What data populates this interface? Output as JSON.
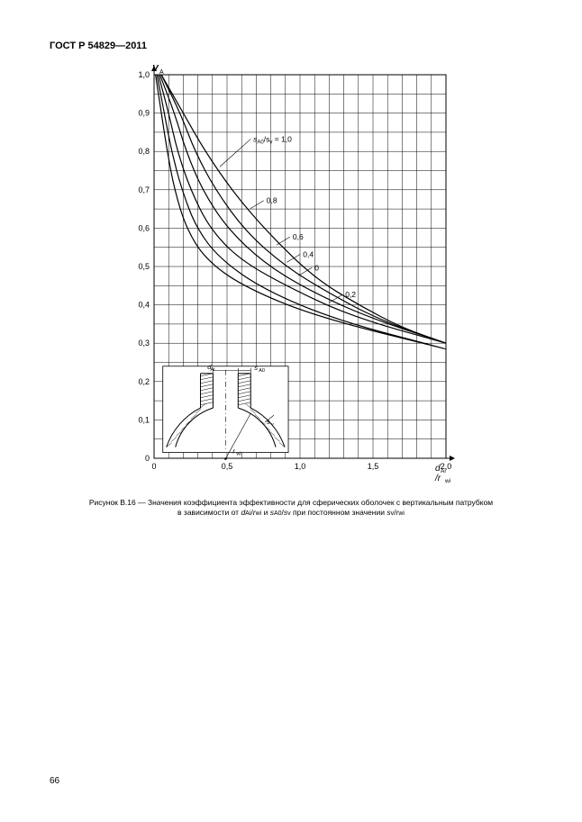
{
  "header": "ГОСТ Р 54829—2011",
  "page_number": "66",
  "caption_line1_prefix": "Рисунок В.16 — Значения коэффициента эффективности для сферических оболочек с вертикальным патрубком",
  "caption_line2_prefix": "в зависимости от ",
  "caption_var_d": "d",
  "caption_sub_Ai": "Ai",
  "caption_slash": "/",
  "caption_var_r": "r",
  "caption_sub_wi": "wi",
  "caption_and": " и ",
  "caption_var_s": "s",
  "caption_sub_A0": "A0",
  "caption_sub_v": "v",
  "caption_mid": " при постоянном значении ",
  "chart": {
    "type": "line",
    "background_color": "#ffffff",
    "grid_color": "#000000",
    "grid_stroke": 0.5,
    "axis_stroke": 1.0,
    "curve_stroke": 1.2,
    "font_size_tick": 9,
    "font_size_axis_label": 10,
    "y_label": "V",
    "y_label_sub": "A",
    "x_label_top": "d",
    "x_label_top_sub": "Ai",
    "x_label_bot": "r",
    "x_label_bot_sub": "wi",
    "xlim": [
      0,
      2.0
    ],
    "ylim": [
      0,
      1.0
    ],
    "x_ticks_major": [
      0,
      0.5,
      1.0,
      1.5,
      2.0
    ],
    "x_tick_labels": [
      "0",
      "0,5",
      "1,0",
      "1,5",
      "2,0"
    ],
    "y_ticks": [
      0,
      0.1,
      0.2,
      0.3,
      0.4,
      0.5,
      0.6,
      0.7,
      0.8,
      0.9,
      1.0
    ],
    "y_tick_labels": [
      "0",
      "0,1",
      "0,2",
      "0,3",
      "0,4",
      "0,5",
      "0,6",
      "0,7",
      "0,8",
      "0,9",
      "1,0"
    ],
    "x_minor_step": 0.1,
    "y_minor_step": 0.05,
    "series_label_prefix": "s",
    "series_label_prefix_sub": "A0",
    "series_label_mid": "/s",
    "series_label_mid_sub": "v",
    "series_label_eq": " = 1,0",
    "series": [
      {
        "label": "1,0",
        "points": [
          [
            0.05,
            1.0
          ],
          [
            0.2,
            0.9
          ],
          [
            0.35,
            0.8
          ],
          [
            0.55,
            0.69
          ],
          [
            0.8,
            0.58
          ],
          [
            1.1,
            0.47
          ],
          [
            1.4,
            0.4
          ],
          [
            1.7,
            0.34
          ],
          [
            2.0,
            0.3
          ]
        ]
      },
      {
        "label": "0,8",
        "points": [
          [
            0.05,
            1.0
          ],
          [
            0.18,
            0.9
          ],
          [
            0.28,
            0.8
          ],
          [
            0.42,
            0.7
          ],
          [
            0.63,
            0.59
          ],
          [
            0.9,
            0.5
          ],
          [
            1.2,
            0.43
          ],
          [
            1.55,
            0.36
          ],
          [
            2.0,
            0.3
          ]
        ]
      },
      {
        "label": "0,6",
        "points": [
          [
            0.04,
            1.0
          ],
          [
            0.14,
            0.9
          ],
          [
            0.22,
            0.8
          ],
          [
            0.33,
            0.7
          ],
          [
            0.5,
            0.6
          ],
          [
            0.75,
            0.51
          ],
          [
            1.05,
            0.44
          ],
          [
            1.45,
            0.37
          ],
          [
            2.0,
            0.3
          ]
        ]
      },
      {
        "label": "0,4",
        "points": [
          [
            0.03,
            1.0
          ],
          [
            0.1,
            0.9
          ],
          [
            0.16,
            0.8
          ],
          [
            0.25,
            0.7
          ],
          [
            0.38,
            0.6
          ],
          [
            0.58,
            0.52
          ],
          [
            0.9,
            0.45
          ],
          [
            1.35,
            0.37
          ],
          [
            2.0,
            0.3
          ]
        ]
      },
      {
        "label": "0,2",
        "points": [
          [
            0.02,
            1.0
          ],
          [
            0.07,
            0.9
          ],
          [
            0.12,
            0.8
          ],
          [
            0.19,
            0.7
          ],
          [
            0.29,
            0.6
          ],
          [
            0.45,
            0.52
          ],
          [
            0.75,
            0.44
          ],
          [
            1.25,
            0.36
          ],
          [
            2.0,
            0.285
          ]
        ]
      },
      {
        "label": "0",
        "points": [
          [
            0.01,
            1.0
          ],
          [
            0.05,
            0.9
          ],
          [
            0.09,
            0.8
          ],
          [
            0.14,
            0.7
          ],
          [
            0.22,
            0.6
          ],
          [
            0.35,
            0.52
          ],
          [
            0.6,
            0.45
          ],
          [
            1.1,
            0.37
          ],
          [
            2.0,
            0.285
          ]
        ]
      }
    ],
    "series_label_positions": {
      "1,0": [
        0.68,
        0.825
      ],
      "0,8": [
        0.77,
        0.665
      ],
      "0,6": [
        0.95,
        0.57
      ],
      "0,4": [
        1.02,
        0.525
      ],
      "0,2": [
        1.31,
        0.42
      ],
      "0": [
        1.1,
        0.49
      ]
    },
    "inset": {
      "labels": {
        "dAi": "d",
        "dAi_sub": "Ai",
        "sA0": "s",
        "sA0_sub": "A0",
        "sv": "s",
        "sv_sub": "v",
        "rwi": "r",
        "rwi_sub": "wi"
      }
    }
  }
}
